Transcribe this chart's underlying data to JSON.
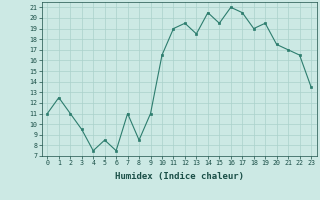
{
  "x": [
    0,
    1,
    2,
    3,
    4,
    5,
    6,
    7,
    8,
    9,
    10,
    11,
    12,
    13,
    14,
    15,
    16,
    17,
    18,
    19,
    20,
    21,
    22,
    23
  ],
  "y": [
    11,
    12.5,
    11,
    9.5,
    7.5,
    8.5,
    7.5,
    11,
    8.5,
    11,
    16.5,
    19,
    19.5,
    18.5,
    20.5,
    19.5,
    21,
    20.5,
    19,
    19.5,
    17.5,
    17,
    16.5,
    13.5
  ],
  "xlabel": "Humidex (Indice chaleur)",
  "line_color": "#2d7d6e",
  "marker_color": "#2d7d6e",
  "bg_color": "#cce9e4",
  "grid_color": "#aad1cb",
  "text_color": "#1a4f47",
  "xlim": [
    -0.5,
    23.5
  ],
  "ylim": [
    7,
    21.5
  ],
  "yticks": [
    7,
    8,
    9,
    10,
    11,
    12,
    13,
    14,
    15,
    16,
    17,
    18,
    19,
    20,
    21
  ],
  "xticks": [
    0,
    1,
    2,
    3,
    4,
    5,
    6,
    7,
    8,
    9,
    10,
    11,
    12,
    13,
    14,
    15,
    16,
    17,
    18,
    19,
    20,
    21,
    22,
    23
  ],
  "tick_fontsize": 4.8,
  "xlabel_fontsize": 6.5
}
